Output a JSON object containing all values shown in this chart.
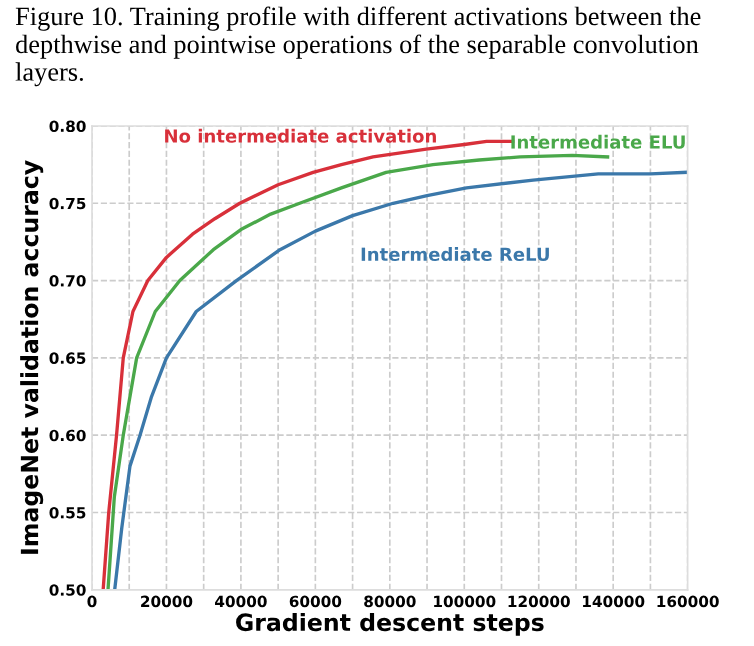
{
  "chart_data": {
    "type": "line",
    "title": "Figure 10. Training profile with different activations between the depthwise and pointwise operations of the separable convolution layers.",
    "xlabel": "Gradient descent steps",
    "ylabel": "ImageNet validation accuracy",
    "xlim": [
      0,
      160000
    ],
    "ylim": [
      0.5,
      0.8
    ],
    "xticks": [
      0,
      {
        "value": 10000,
        "label": null
      },
      20000,
      {
        "value": 30000,
        "label": null
      },
      40000,
      {
        "value": 50000,
        "label": null
      },
      60000,
      {
        "value": 70000,
        "label": null
      },
      80000,
      {
        "value": 90000,
        "label": null
      },
      100000,
      {
        "value": 110000,
        "label": null
      },
      120000,
      {
        "value": 130000,
        "label": null
      },
      140000,
      {
        "value": 150000,
        "label": null
      },
      160000
    ],
    "yticks": [
      {
        "value": 0.5,
        "label": "0.50"
      },
      {
        "value": 0.55,
        "label": "0.55"
      },
      {
        "value": 0.6,
        "label": "0.60"
      },
      {
        "value": 0.65,
        "label": "0.65"
      },
      {
        "value": 0.7,
        "label": "0.70"
      },
      {
        "value": 0.75,
        "label": "0.75"
      },
      {
        "value": 0.8,
        "label": "0.80"
      }
    ],
    "grid": true,
    "marker": "none",
    "line_style": "solid",
    "series": [
      {
        "name": "No intermediate activation",
        "color": "#d8303a",
        "x": [
          3000,
          4500,
          6600,
          8400,
          11000,
          15000,
          20000,
          27000,
          33000,
          39700,
          50000,
          59400,
          67000,
          75500,
          89800,
          100000,
          106000,
          113000
        ],
        "values": [
          0.5,
          0.55,
          0.6,
          0.65,
          0.68,
          0.7,
          0.715,
          0.73,
          0.74,
          0.75,
          0.762,
          0.77,
          0.775,
          0.78,
          0.785,
          0.788,
          0.79,
          0.79
        ]
      },
      {
        "name": "Intermediate ELU",
        "color": "#4aa84a",
        "x": [
          4300,
          6000,
          8400,
          12000,
          17000,
          23600,
          32600,
          40000,
          48000,
          55800,
          67000,
          79000,
          91600,
          104000,
          115000,
          129000,
          138500
        ],
        "values": [
          0.5,
          0.56,
          0.6,
          0.65,
          0.68,
          0.7,
          0.72,
          0.733,
          0.743,
          0.75,
          0.76,
          0.77,
          0.775,
          0.778,
          0.78,
          0.781,
          0.78
        ]
      },
      {
        "name": "Intermediate ReLU",
        "color": "#3b78aa",
        "x": [
          6100,
          8000,
          10200,
          12900,
          16000,
          20000,
          28000,
          38800,
          50500,
          60000,
          70000,
          80900,
          90000,
          100600,
          118500,
          136000,
          150000,
          159600
        ],
        "values": [
          0.5,
          0.54,
          0.58,
          0.6,
          0.625,
          0.65,
          0.68,
          0.7,
          0.72,
          0.732,
          0.742,
          0.75,
          0.755,
          0.76,
          0.765,
          0.769,
          0.769,
          0.77
        ]
      }
    ]
  }
}
